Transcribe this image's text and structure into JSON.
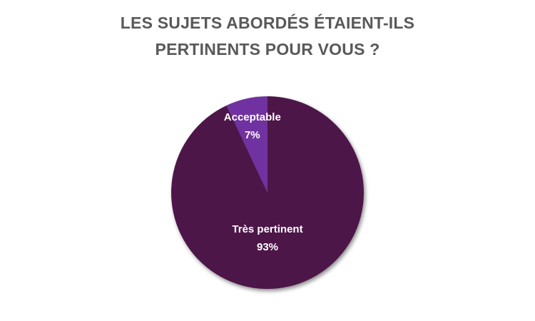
{
  "chart_data": {
    "type": "pie",
    "title_lines": [
      "LES SUJETS ABORDÉS ÉTAIENT-ILS",
      "PERTINENTS POUR VOUS ?"
    ],
    "slices": [
      {
        "label": "Acceptable",
        "value": 7,
        "value_label": "7%",
        "color": "#7030A0"
      },
      {
        "label": "Très pertinent",
        "value": 93,
        "value_label": "93%",
        "color": "#4E1848"
      }
    ],
    "legend": "none"
  }
}
